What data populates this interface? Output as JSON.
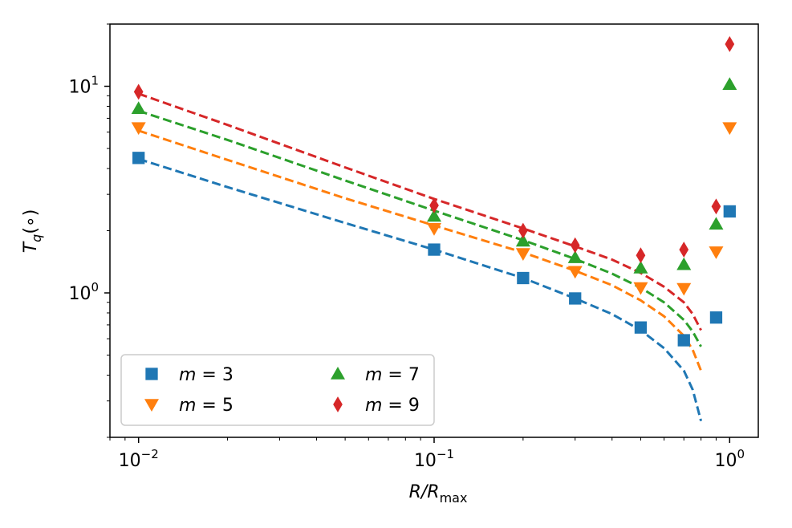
{
  "chart_data": {
    "type": "scatter",
    "xscale": "log",
    "yscale": "log",
    "xlabel_main": "R/R",
    "xlabel_sub": "max",
    "ylabel_main": "T",
    "ylabel_sub": "q",
    "ylabel_suffix": "(∘)",
    "xlim": [
      0.008,
      1.25
    ],
    "ylim": [
      0.2,
      20
    ],
    "x_ticks": [
      {
        "value": 0.01,
        "base": "10",
        "exp": "−2"
      },
      {
        "value": 0.1,
        "base": "10",
        "exp": "−1"
      },
      {
        "value": 1,
        "base": "10",
        "exp": "0"
      }
    ],
    "y_ticks": [
      {
        "value": 1,
        "base": "10",
        "exp": "0"
      },
      {
        "value": 10,
        "base": "10",
        "exp": "1"
      }
    ],
    "legend_position": "lower-left",
    "series": [
      {
        "name": "m = 3",
        "label_var": "m",
        "label_eq": " = 3",
        "color": "#1f77b4",
        "marker": "square",
        "x": [
          0.01,
          0.1,
          0.2,
          0.3,
          0.5,
          0.7,
          0.9,
          1.0
        ],
        "y": [
          4.5,
          1.62,
          1.18,
          0.94,
          0.68,
          0.59,
          0.76,
          2.48
        ],
        "fit_x": [
          0.01,
          0.02,
          0.05,
          0.1,
          0.2,
          0.3,
          0.4,
          0.5,
          0.6,
          0.7,
          0.75,
          0.8
        ],
        "fit_y": [
          4.45,
          3.25,
          2.18,
          1.62,
          1.18,
          0.94,
          0.79,
          0.66,
          0.54,
          0.42,
          0.34,
          0.24
        ]
      },
      {
        "name": "m = 5",
        "label_var": "m",
        "label_eq": " = 5",
        "color": "#ff7f0e",
        "marker": "triangle-down",
        "x": [
          0.01,
          0.1,
          0.2,
          0.3,
          0.5,
          0.7,
          0.9,
          1.0
        ],
        "y": [
          6.3,
          2.05,
          1.55,
          1.27,
          1.06,
          1.05,
          1.58,
          6.3
        ],
        "fit_x": [
          0.01,
          0.02,
          0.05,
          0.1,
          0.2,
          0.3,
          0.4,
          0.5,
          0.6,
          0.7,
          0.75,
          0.8
        ],
        "fit_y": [
          6.1,
          4.4,
          2.87,
          2.12,
          1.57,
          1.28,
          1.09,
          0.92,
          0.77,
          0.62,
          0.53,
          0.42
        ]
      },
      {
        "name": "m = 7",
        "label_var": "m",
        "label_eq": " = 7",
        "color": "#2ca02c",
        "marker": "triangle-up",
        "x": [
          0.01,
          0.1,
          0.2,
          0.3,
          0.5,
          0.7,
          0.9,
          1.0
        ],
        "y": [
          7.8,
          2.35,
          1.78,
          1.48,
          1.32,
          1.37,
          2.15,
          10.2
        ],
        "fit_x": [
          0.01,
          0.02,
          0.05,
          0.1,
          0.2,
          0.3,
          0.4,
          0.5,
          0.6,
          0.7,
          0.75,
          0.8
        ],
        "fit_y": [
          7.6,
          5.5,
          3.5,
          2.5,
          1.8,
          1.46,
          1.24,
          1.06,
          0.9,
          0.74,
          0.65,
          0.55
        ]
      },
      {
        "name": "m = 9",
        "label_var": "m",
        "label_eq": " = 9",
        "color": "#d62728",
        "marker": "diamond",
        "x": [
          0.01,
          0.1,
          0.2,
          0.3,
          0.5,
          0.7,
          0.9,
          1.0
        ],
        "y": [
          9.4,
          2.65,
          2.0,
          1.7,
          1.52,
          1.62,
          2.62,
          16.0
        ],
        "fit_x": [
          0.01,
          0.02,
          0.05,
          0.1,
          0.2,
          0.3,
          0.4,
          0.5,
          0.6,
          0.7,
          0.75,
          0.8
        ],
        "fit_y": [
          9.2,
          6.5,
          4.05,
          2.85,
          2.05,
          1.68,
          1.45,
          1.25,
          1.07,
          0.9,
          0.79,
          0.66
        ]
      }
    ]
  }
}
